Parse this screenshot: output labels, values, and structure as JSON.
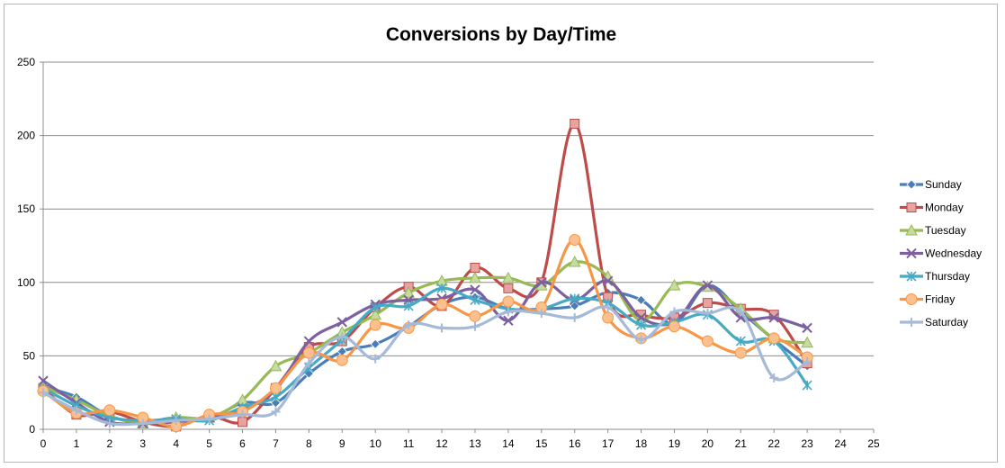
{
  "chart_data": {
    "type": "line",
    "title": "Conversions by Day/Time",
    "xlabel": "",
    "ylabel": "",
    "xlim": [
      0,
      25
    ],
    "ylim": [
      0,
      250
    ],
    "x_ticks": [
      "0",
      "1",
      "2",
      "3",
      "4",
      "5",
      "6",
      "7",
      "8",
      "9",
      "10",
      "11",
      "12",
      "13",
      "14",
      "15",
      "16",
      "17",
      "18",
      "19",
      "20",
      "21",
      "22",
      "23",
      "24",
      "25"
    ],
    "y_ticks": [
      "0",
      "50",
      "100",
      "150",
      "200",
      "250"
    ],
    "grid": "horizontal",
    "legend_position": "right",
    "x": [
      0,
      1,
      2,
      3,
      4,
      5,
      6,
      7,
      8,
      9,
      10,
      11,
      12,
      13,
      14,
      15,
      16,
      17,
      18,
      19,
      20,
      21,
      22,
      23
    ],
    "series": [
      {
        "name": "Sunday",
        "color": "#4a7ebb",
        "marker": "diamond",
        "values": [
          29,
          22,
          9,
          5,
          8,
          7,
          18,
          18,
          38,
          53,
          58,
          70,
          85,
          90,
          82,
          82,
          84,
          93,
          88,
          72,
          98,
          80,
          61,
          43
        ]
      },
      {
        "name": "Monday",
        "color": "#be4b48",
        "marker": "square",
        "values": [
          28,
          10,
          12,
          5,
          2,
          9,
          5,
          28,
          56,
          60,
          83,
          97,
          84,
          110,
          96,
          100,
          208,
          90,
          78,
          76,
          86,
          82,
          78,
          45
        ]
      },
      {
        "name": "Tuesday",
        "color": "#98b954",
        "marker": "triangle",
        "values": [
          29,
          20,
          9,
          4,
          8,
          8,
          20,
          43,
          52,
          66,
          78,
          93,
          101,
          103,
          103,
          98,
          114,
          104,
          74,
          98,
          97,
          82,
          62,
          59
        ]
      },
      {
        "name": "Wednesday",
        "color": "#7d60a0",
        "marker": "x",
        "values": [
          33,
          18,
          5,
          4,
          5,
          8,
          14,
          27,
          60,
          73,
          85,
          88,
          89,
          95,
          74,
          100,
          88,
          101,
          76,
          73,
          98,
          76,
          76,
          69
        ]
      },
      {
        "name": "Thursday",
        "color": "#46aac5",
        "marker": "star",
        "values": [
          28,
          16,
          8,
          6,
          7,
          6,
          15,
          22,
          42,
          61,
          83,
          84,
          96,
          88,
          82,
          82,
          89,
          86,
          71,
          73,
          78,
          60,
          60,
          30
        ]
      },
      {
        "name": "Friday",
        "color": "#f79646",
        "marker": "circle",
        "values": [
          26,
          11,
          13,
          8,
          2,
          10,
          12,
          28,
          52,
          47,
          71,
          69,
          85,
          77,
          87,
          83,
          129,
          76,
          62,
          70,
          60,
          52,
          62,
          49
        ]
      },
      {
        "name": "Saturday",
        "color": "#a5b9d9",
        "marker": "plus",
        "values": [
          25,
          13,
          4,
          4,
          6,
          7,
          10,
          12,
          45,
          63,
          48,
          71,
          69,
          70,
          80,
          79,
          76,
          83,
          61,
          80,
          79,
          80,
          35,
          46
        ]
      }
    ]
  }
}
